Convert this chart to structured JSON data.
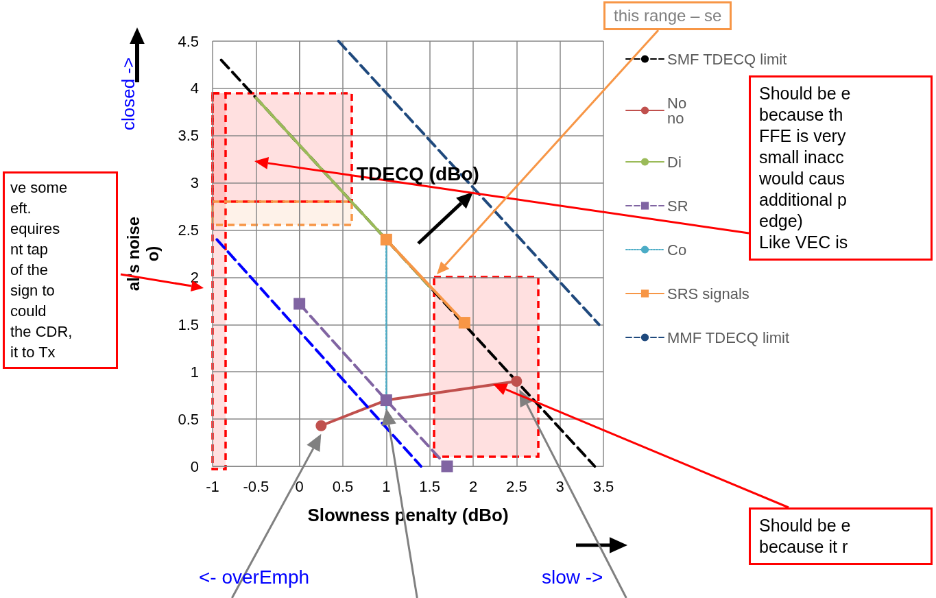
{
  "chart_data": {
    "type": "line",
    "xlabel": "Slowness penalty (dBo)",
    "ylabel": "al's noise\no)",
    "bands": [
      {
        "axis": "x",
        "from": -1,
        "to": -0.85,
        "color": "#ff0000"
      }
    ],
    "xlim": [
      -1,
      3.5
    ],
    "xticks": [
      -1,
      -0.5,
      0,
      0.5,
      1,
      1.5,
      2,
      2.5,
      3,
      3.5
    ],
    "ylim": [
      0,
      4.5
    ],
    "yticks": [
      0,
      0.5,
      1,
      1.5,
      2,
      2.5,
      3,
      3.5,
      4,
      4.5
    ],
    "grid": true,
    "legend": "right",
    "series": [
      {
        "name": "SMF TDECQ limit",
        "color": "#000000",
        "line_style": "dashed",
        "marker": "none",
        "x": [
          -0.9,
          3.4
        ],
        "values": [
          4.3,
          0
        ]
      },
      {
        "name": "No\nno",
        "color": "#c0504d",
        "line_style": "solid",
        "marker": "circle",
        "x": [
          0.25,
          1,
          2.5
        ],
        "values": [
          0.43,
          0.7,
          0.9
        ]
      },
      {
        "name": "Di",
        "color": "#9bbb59",
        "line_style": "solid",
        "marker": "none",
        "x": [
          -0.5,
          1.5
        ],
        "values": [
          3.9,
          1.9
        ]
      },
      {
        "name": "SR",
        "color": "#8064a2",
        "line_style": "dashed",
        "marker": "square",
        "x": [
          0,
          1,
          1.7
        ],
        "values": [
          1.72,
          0.7,
          0
        ]
      },
      {
        "name": "Co",
        "color": "#4bacc6",
        "line_style": "dotted",
        "marker": "none",
        "x": [
          1,
          1
        ],
        "values": [
          2.35,
          0.6
        ]
      },
      {
        "name": "SRS signals",
        "color": "#f79646",
        "line_style": "solid",
        "marker": "square",
        "x": [
          1,
          1.9
        ],
        "values": [
          2.4,
          1.52
        ]
      },
      {
        "name": "MMF TDECQ limit",
        "color": "#1f497d",
        "line_style": "dashed",
        "marker": "none",
        "x": [
          0.45,
          3.45
        ],
        "values": [
          4.5,
          1.5
        ]
      },
      {
        "color": "#0000ff",
        "line_style": "dashed",
        "marker": "none",
        "x": [
          -0.95,
          1.4
        ],
        "values": [
          2.4,
          0
        ]
      }
    ],
    "annotations": [
      "TDECQ (dBo)",
      "closed ->",
      "<- overEmph",
      "slow ->",
      "this range – se",
      "ve some\neft.\nequires\nnt tap\nof the\n sign to\ncould\nthe CDR,\nit to Tx",
      "Should be e\nbecause th\nFFE is very\nsmall inacc\nwould caus\nadditional p\nedge)\nLike VEC is",
      "Should be e\nbecause it r"
    ]
  }
}
